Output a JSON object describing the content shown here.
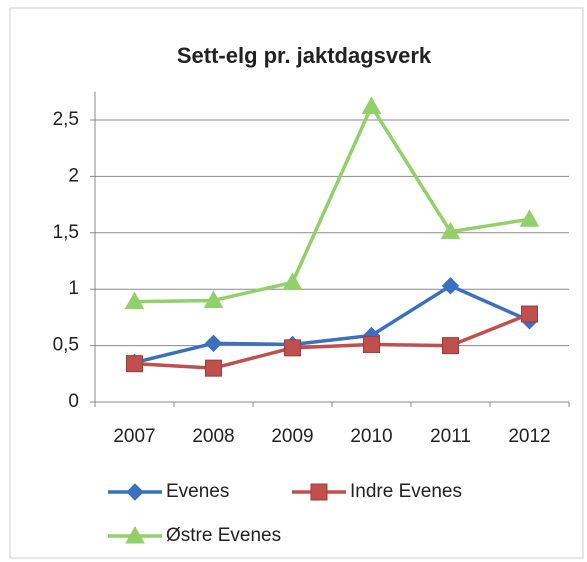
{
  "chart_data": {
    "type": "line",
    "title": "Sett-elg pr. jaktdagsverk",
    "categories": [
      "2007",
      "2008",
      "2009",
      "2010",
      "2011",
      "2012"
    ],
    "series": [
      {
        "name": "Evenes",
        "color": "#3b6fc0",
        "marker": "diamond",
        "values": [
          0.35,
          0.52,
          0.51,
          0.59,
          1.03,
          0.72
        ]
      },
      {
        "name": "Indre Evenes",
        "color": "#c0504d",
        "marker": "square",
        "values": [
          0.34,
          0.3,
          0.48,
          0.51,
          0.5,
          0.78
        ]
      },
      {
        "name": "Østre Evenes",
        "color": "#92d06a",
        "marker": "triangle",
        "values": [
          0.89,
          0.9,
          1.06,
          2.62,
          1.51,
          1.62
        ]
      }
    ],
    "ylim": [
      0,
      2.75
    ],
    "yticks": [
      0,
      {
        "value": 0.5,
        "label": "0,5"
      },
      1,
      {
        "value": 1.5,
        "label": "1,5"
      },
      2,
      {
        "value": 2.5,
        "label": "2,5"
      }
    ],
    "grid": true,
    "legend": "bottom"
  }
}
